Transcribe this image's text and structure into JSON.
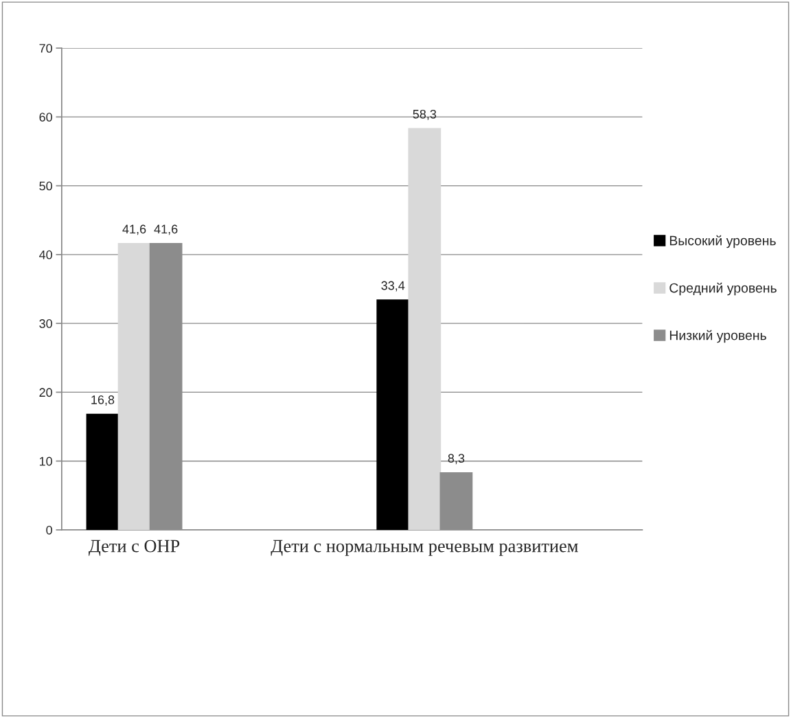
{
  "chart_data": {
    "type": "bar",
    "categories": [
      "Дети с ОНР",
      null,
      "Дети с нормальным речевым развитием",
      null
    ],
    "series": [
      {
        "name": "Высокий уровень",
        "color": "#000000",
        "values": [
          16.8,
          null,
          33.4,
          null
        ],
        "value_labels": [
          "16,8",
          null,
          "33,4",
          null
        ]
      },
      {
        "name": "Средний уровень",
        "color": "#d9d9d9",
        "values": [
          41.6,
          null,
          58.3,
          null
        ],
        "value_labels": [
          "41,6",
          null,
          "58,3",
          null
        ]
      },
      {
        "name": "Низкий уровень",
        "color": "#8c8c8c",
        "values": [
          41.6,
          null,
          8.3,
          null
        ],
        "value_labels": [
          "41,6",
          null,
          "8,3",
          null
        ]
      }
    ],
    "ylim": [
      0,
      70
    ],
    "yticks": [
      0,
      10,
      20,
      30,
      40,
      50,
      60,
      70
    ],
    "grid": "y",
    "legend": "right"
  }
}
